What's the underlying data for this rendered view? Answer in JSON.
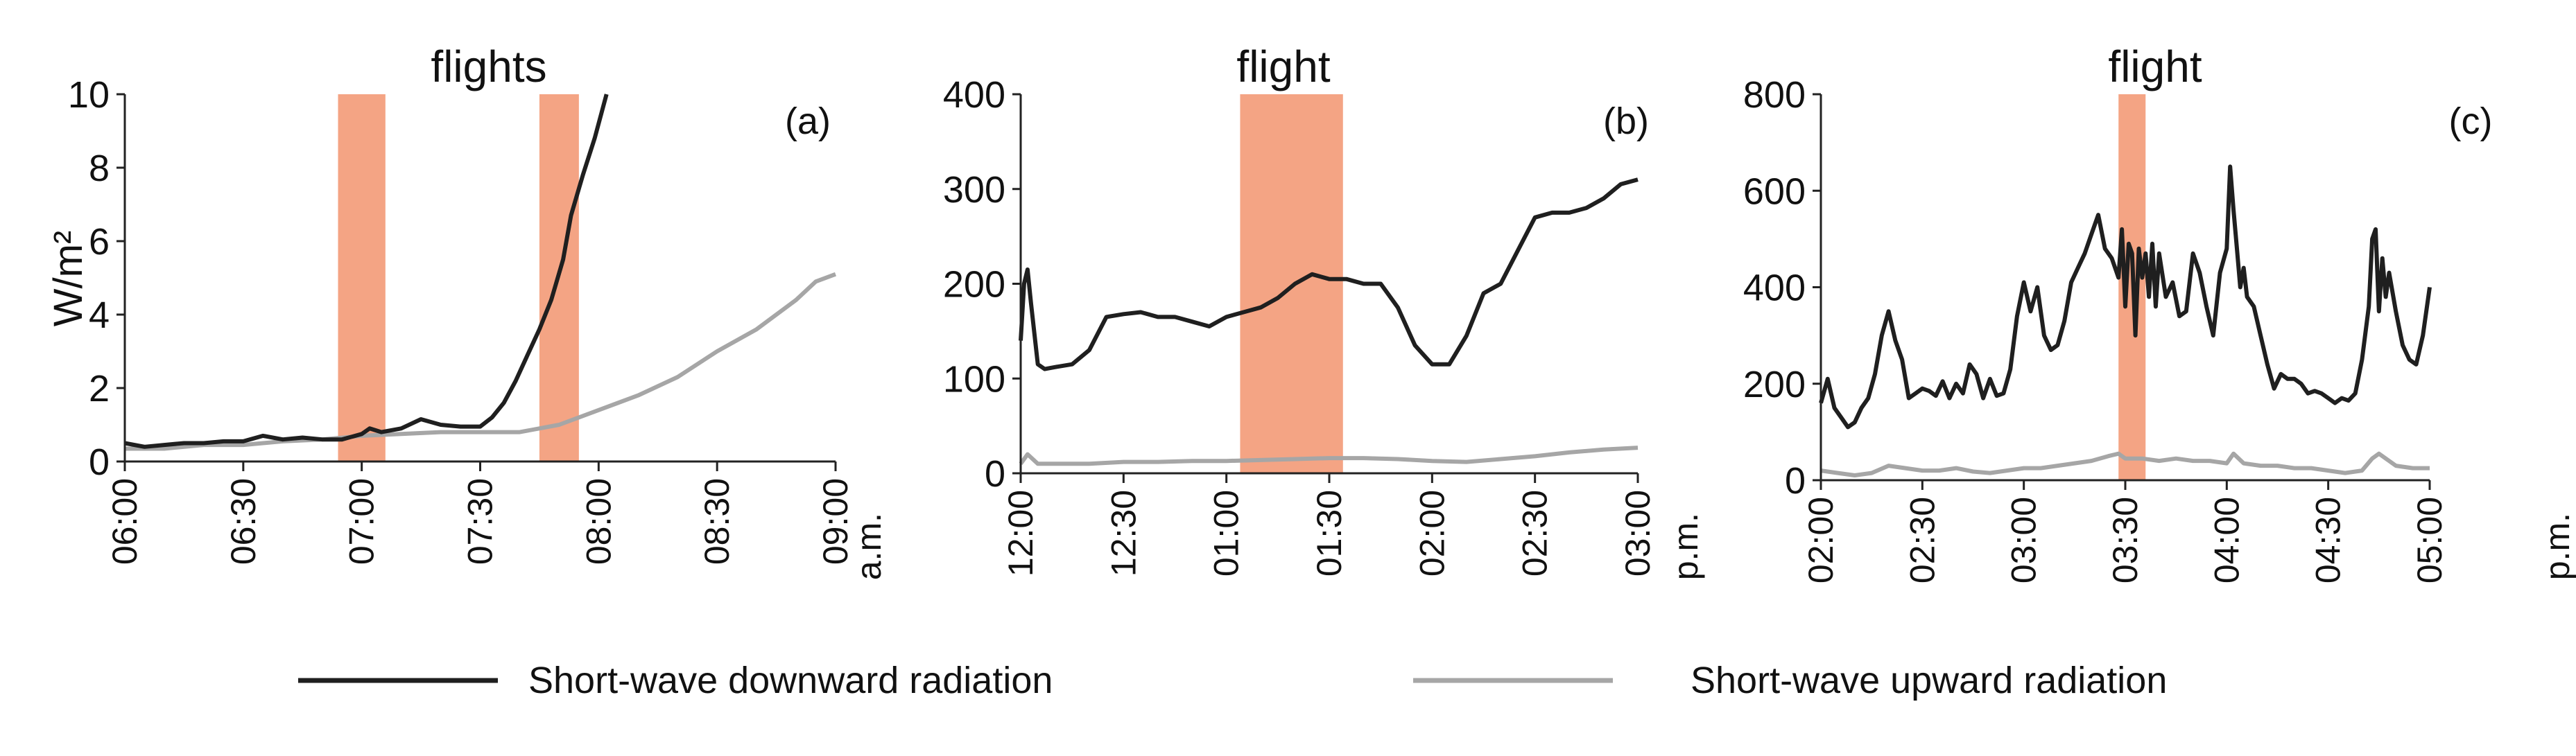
{
  "colors": {
    "downward": "#1f1f1f",
    "upward": "#a6a6a6",
    "flight_band": "#f4a484",
    "axis": "#222222"
  },
  "legend": {
    "downward_label": "Short-wave downward radiation",
    "upward_label": "Short-wave upward radiation"
  },
  "chart_data": [
    {
      "id": "a",
      "type": "line",
      "panel_label": "(a)",
      "title": "flights",
      "ylabel": "W/m²",
      "xlabel": "",
      "period_label": "a.m.",
      "ylim": [
        0,
        10
      ],
      "yticks": [
        0,
        2,
        4,
        6,
        8,
        10
      ],
      "xlim": [
        0,
        180
      ],
      "xticks": [
        0,
        30,
        60,
        90,
        120,
        150,
        180
      ],
      "xtick_labels": [
        "06:00",
        "06:30",
        "07:00",
        "07:30",
        "08:00",
        "08:30",
        "09:00"
      ],
      "flight_periods": [
        [
          54,
          66
        ],
        [
          105,
          115
        ]
      ],
      "series": [
        {
          "name": "Short-wave downward radiation",
          "color_key": "downward",
          "x": [
            0,
            5,
            10,
            15,
            20,
            25,
            30,
            35,
            40,
            45,
            50,
            55,
            60,
            62,
            65,
            70,
            75,
            80,
            85,
            90,
            93,
            96,
            99,
            102,
            105,
            108,
            111,
            113,
            116,
            119,
            122
          ],
          "y": [
            0.5,
            0.4,
            0.45,
            0.5,
            0.5,
            0.55,
            0.55,
            0.7,
            0.6,
            0.65,
            0.6,
            0.6,
            0.75,
            0.9,
            0.8,
            0.9,
            1.15,
            1.0,
            0.95,
            0.95,
            1.2,
            1.6,
            2.2,
            2.9,
            3.6,
            4.4,
            5.5,
            6.7,
            7.8,
            8.8,
            10.0
          ]
        },
        {
          "name": "Short-wave upward radiation",
          "color_key": "upward",
          "x": [
            0,
            10,
            20,
            30,
            40,
            50,
            60,
            70,
            80,
            90,
            100,
            110,
            120,
            130,
            140,
            150,
            160,
            170,
            175,
            180
          ],
          "y": [
            0.35,
            0.35,
            0.45,
            0.45,
            0.55,
            0.6,
            0.7,
            0.75,
            0.8,
            0.8,
            0.8,
            1.0,
            1.4,
            1.8,
            2.3,
            3.0,
            3.6,
            4.4,
            4.9,
            5.1
          ]
        }
      ]
    },
    {
      "id": "b",
      "type": "line",
      "panel_label": "(b)",
      "title": "flight",
      "ylabel": "",
      "xlabel": "",
      "period_label": "p.m.",
      "ylim": [
        0,
        400
      ],
      "yticks": [
        0,
        100,
        200,
        300,
        400
      ],
      "xlim": [
        0,
        180
      ],
      "xticks": [
        0,
        30,
        60,
        90,
        120,
        150,
        180
      ],
      "xtick_labels": [
        "12:00",
        "12:30",
        "01:00",
        "01:30",
        "02:00",
        "02:30",
        "03:00"
      ],
      "flight_periods": [
        [
          64,
          94
        ]
      ],
      "series": [
        {
          "name": "Short-wave downward radiation",
          "color_key": "downward",
          "x": [
            0,
            1,
            2,
            3,
            5,
            7,
            10,
            15,
            20,
            25,
            30,
            35,
            40,
            45,
            50,
            55,
            60,
            65,
            70,
            75,
            80,
            85,
            90,
            95,
            100,
            105,
            110,
            115,
            120,
            125,
            130,
            135,
            140,
            145,
            150,
            155,
            160,
            165,
            170,
            175,
            180
          ],
          "y": [
            140,
            200,
            215,
            180,
            115,
            110,
            112,
            115,
            130,
            165,
            168,
            170,
            165,
            165,
            160,
            155,
            165,
            170,
            175,
            185,
            200,
            210,
            205,
            205,
            200,
            200,
            175,
            135,
            115,
            115,
            145,
            190,
            200,
            235,
            270,
            275,
            275,
            280,
            290,
            305,
            310
          ]
        },
        {
          "name": "Short-wave upward radiation",
          "color_key": "upward",
          "x": [
            0,
            2,
            5,
            10,
            20,
            30,
            40,
            50,
            60,
            70,
            80,
            90,
            100,
            110,
            120,
            130,
            140,
            150,
            160,
            170,
            180
          ],
          "y": [
            10,
            20,
            10,
            10,
            10,
            12,
            12,
            13,
            13,
            14,
            15,
            16,
            16,
            15,
            13,
            12,
            15,
            18,
            22,
            25,
            27
          ]
        }
      ]
    },
    {
      "id": "c",
      "type": "line",
      "panel_label": "(c)",
      "title": "flight",
      "ylabel": "",
      "xlabel": "",
      "period_label": "p.m.",
      "ylim": [
        0,
        800
      ],
      "yticks": [
        0,
        200,
        400,
        600,
        800
      ],
      "xlim": [
        0,
        180
      ],
      "xticks": [
        0,
        30,
        60,
        90,
        120,
        150,
        180
      ],
      "xtick_labels": [
        "02:00",
        "02:30",
        "03:00",
        "03:30",
        "04:00",
        "04:30",
        "05:00"
      ],
      "flight_periods": [
        [
          88,
          96
        ]
      ],
      "series": [
        {
          "name": "Short-wave downward radiation",
          "color_key": "downward",
          "x": [
            0,
            2,
            4,
            6,
            8,
            10,
            12,
            14,
            16,
            18,
            20,
            22,
            24,
            26,
            28,
            30,
            32,
            34,
            36,
            38,
            40,
            42,
            44,
            46,
            48,
            50,
            52,
            54,
            56,
            58,
            60,
            62,
            64,
            66,
            68,
            70,
            72,
            74,
            76,
            78,
            80,
            82,
            84,
            86,
            88,
            89,
            90,
            91,
            92,
            93,
            94,
            95,
            96,
            97,
            98,
            99,
            100,
            102,
            104,
            106,
            108,
            110,
            112,
            114,
            116,
            118,
            120,
            121,
            122,
            123,
            124,
            125,
            126,
            128,
            130,
            132,
            134,
            136,
            138,
            140,
            142,
            144,
            146,
            148,
            150,
            152,
            154,
            156,
            158,
            160,
            162,
            163,
            164,
            165,
            166,
            167,
            168,
            170,
            172,
            174,
            176,
            178,
            180
          ],
          "y": [
            160,
            210,
            150,
            130,
            110,
            120,
            150,
            170,
            220,
            300,
            350,
            290,
            250,
            170,
            180,
            190,
            185,
            175,
            205,
            170,
            200,
            180,
            240,
            220,
            170,
            210,
            175,
            180,
            230,
            340,
            410,
            350,
            400,
            300,
            270,
            280,
            330,
            410,
            440,
            470,
            510,
            550,
            480,
            460,
            420,
            520,
            360,
            490,
            470,
            300,
            480,
            420,
            470,
            380,
            490,
            360,
            470,
            380,
            410,
            340,
            350,
            470,
            430,
            360,
            300,
            430,
            480,
            650,
            560,
            480,
            400,
            440,
            380,
            360,
            300,
            240,
            190,
            220,
            210,
            210,
            200,
            180,
            185,
            180,
            170,
            160,
            170,
            165,
            180,
            250,
            360,
            500,
            520,
            350,
            460,
            380,
            430,
            350,
            280,
            250,
            240,
            300,
            400
          ]
        },
        {
          "name": "Short-wave upward radiation",
          "color_key": "upward",
          "x": [
            0,
            5,
            10,
            15,
            20,
            25,
            30,
            35,
            40,
            45,
            50,
            55,
            60,
            65,
            70,
            75,
            80,
            85,
            88,
            90,
            95,
            100,
            105,
            110,
            115,
            120,
            122,
            125,
            130,
            135,
            140,
            145,
            150,
            155,
            160,
            163,
            165,
            170,
            175,
            180
          ],
          "y": [
            20,
            15,
            10,
            15,
            30,
            25,
            20,
            20,
            25,
            18,
            15,
            20,
            25,
            25,
            30,
            35,
            40,
            50,
            55,
            45,
            45,
            40,
            45,
            40,
            40,
            35,
            55,
            35,
            30,
            30,
            25,
            25,
            20,
            15,
            20,
            45,
            55,
            30,
            25,
            25
          ]
        }
      ]
    }
  ]
}
